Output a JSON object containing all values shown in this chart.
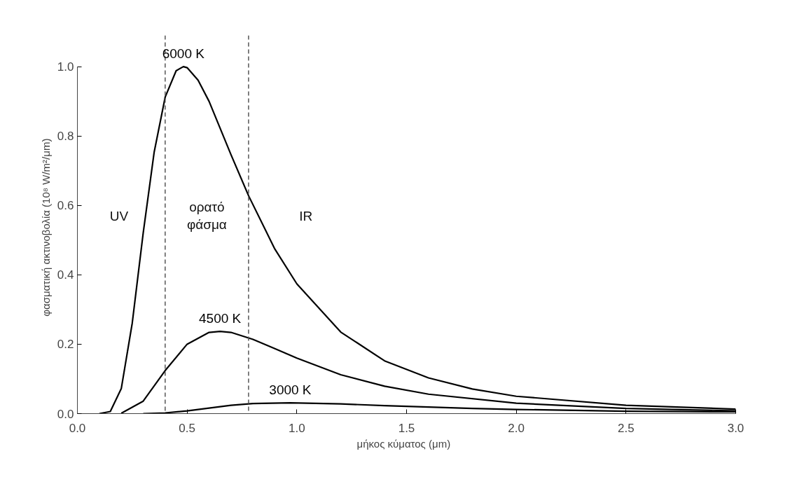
{
  "chart_data": {
    "type": "line",
    "xlabel": "μήκος κύματος   (μm)",
    "ylabel": "φασματική ακτινοβολία   (10⁸ W/m²/μm)",
    "xlim": [
      0,
      3
    ],
    "ylim": [
      0,
      1
    ],
    "xticks": [
      {
        "value": 0,
        "label": "0.0"
      },
      {
        "value": 0.5,
        "label": "0.5"
      },
      {
        "value": 1,
        "label": "1.0"
      },
      {
        "value": 1.5,
        "label": "1.5"
      },
      {
        "value": 2,
        "label": "2.0"
      },
      {
        "value": 2.5,
        "label": "2.5"
      },
      {
        "value": 3,
        "label": "3.0"
      }
    ],
    "yticks": [
      {
        "value": 0,
        "label": "0.0"
      },
      {
        "value": 0.2,
        "label": "0.2"
      },
      {
        "value": 0.4,
        "label": "0.4"
      },
      {
        "value": 0.6,
        "label": "0.6"
      },
      {
        "value": 0.8,
        "label": "0.8"
      },
      {
        "value": 1,
        "label": "1.0"
      }
    ],
    "grid": false,
    "legend": false,
    "marker": "none",
    "line_style": "solid",
    "series": [
      {
        "name": "6000 K",
        "color": "#000000",
        "x": [
          0.1,
          0.15,
          0.2,
          0.25,
          0.3,
          0.35,
          0.4,
          0.45,
          0.483,
          0.5,
          0.55,
          0.6,
          0.7,
          0.78,
          0.9,
          1.0,
          1.2,
          1.4,
          1.6,
          1.8,
          2.0,
          2.5,
          3.0
        ],
        "values": [
          0,
          0.006,
          0.072,
          0.261,
          0.521,
          0.754,
          0.912,
          0.988,
          1.0,
          0.997,
          0.961,
          0.9,
          0.746,
          0.628,
          0.474,
          0.374,
          0.235,
          0.152,
          0.103,
          0.071,
          0.05,
          0.024,
          0.013
        ]
      },
      {
        "name": "4500 K",
        "color": "#000000",
        "x": [
          0.2,
          0.3,
          0.4,
          0.5,
          0.6,
          0.65,
          0.7,
          0.8,
          0.9,
          1.0,
          1.2,
          1.4,
          1.6,
          2.0,
          2.5,
          3.0
        ],
        "values": [
          0.001,
          0.036,
          0.124,
          0.2,
          0.234,
          0.237,
          0.234,
          0.214,
          0.187,
          0.16,
          0.112,
          0.079,
          0.056,
          0.03,
          0.015,
          0.008
        ]
      },
      {
        "name": "3000 K",
        "color": "#000000",
        "x": [
          0.3,
          0.4,
          0.5,
          0.6,
          0.7,
          0.8,
          0.97,
          1.2,
          1.4,
          1.8,
          2.0,
          2.5,
          3.0
        ],
        "values": [
          0.0,
          0.002,
          0.008,
          0.016,
          0.024,
          0.029,
          0.031,
          0.028,
          0.023,
          0.015,
          0.012,
          0.007,
          0.005
        ]
      }
    ],
    "ref_lines": [
      {
        "axis": "x",
        "value": 0.4,
        "label": null,
        "color": "#555555",
        "line_style": "dashed"
      },
      {
        "axis": "x",
        "value": 0.78,
        "label": null,
        "color": "#555555",
        "line_style": "dashed"
      }
    ],
    "annotations": [
      "UV",
      "ορατό\nφάσμα",
      "IR"
    ]
  }
}
